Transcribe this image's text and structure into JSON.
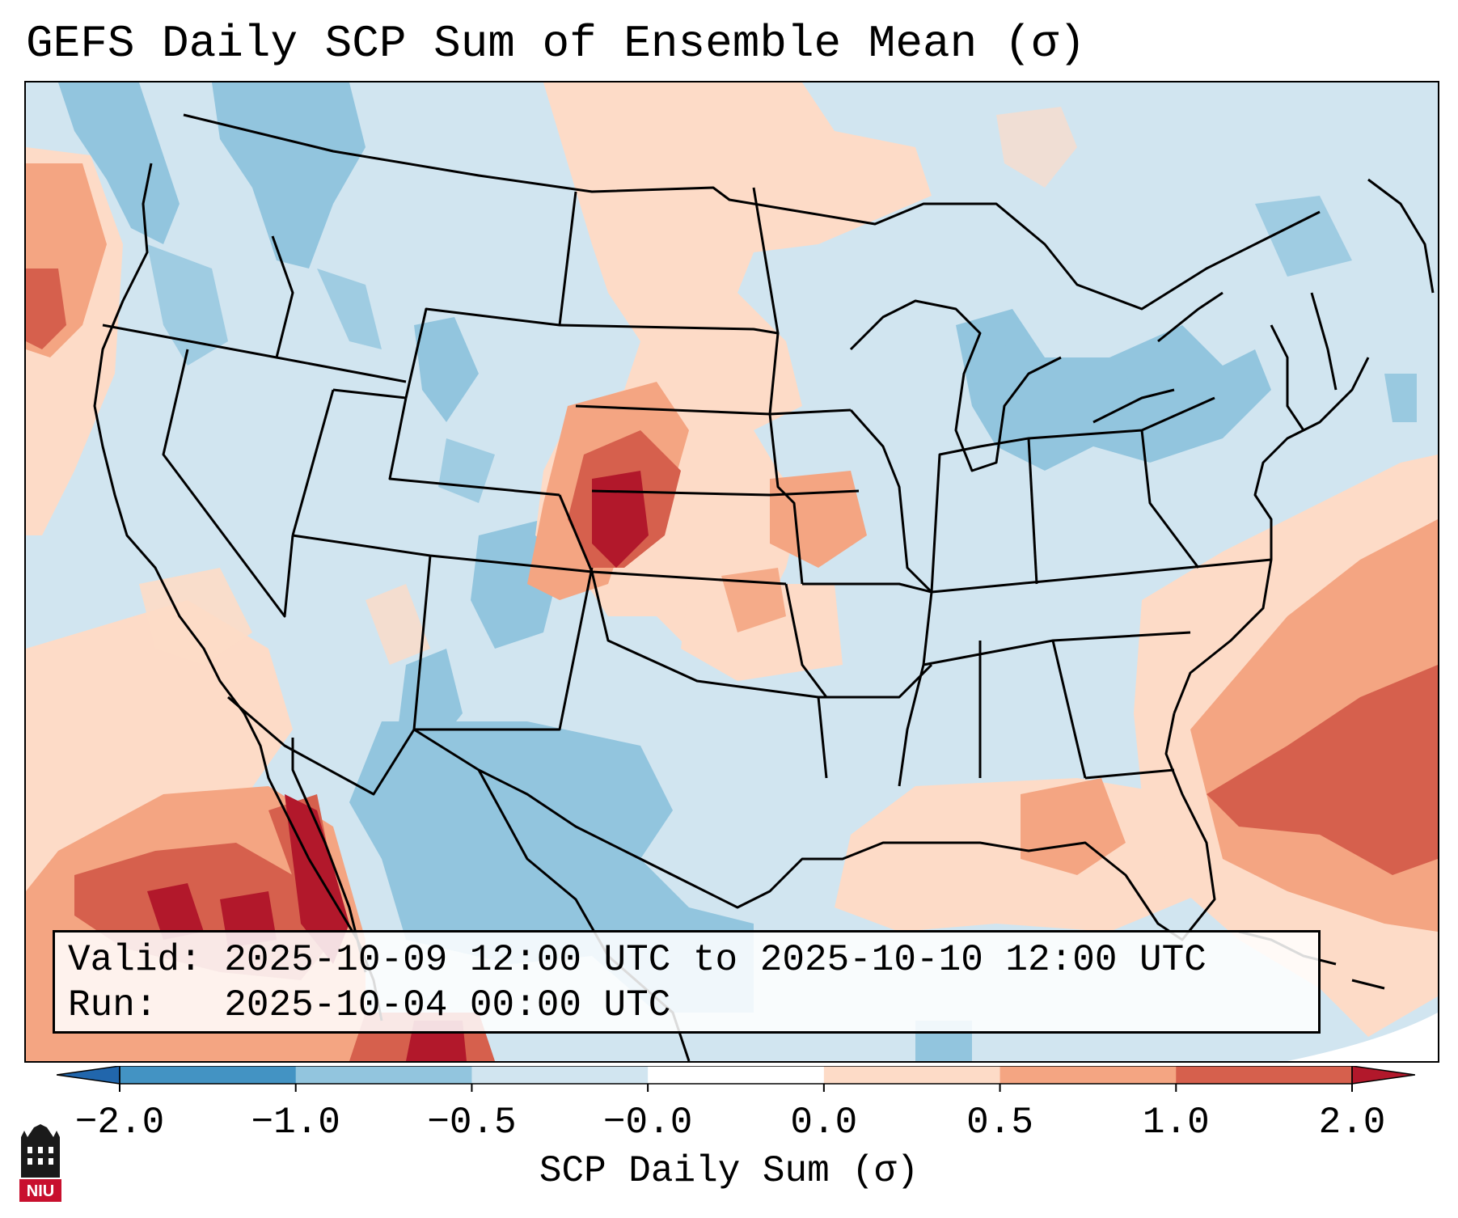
{
  "title": "GEFS Daily SCP Sum of Ensemble Mean (σ)",
  "info": {
    "valid_label": "Valid:",
    "valid_value": "2025-10-09 12:00 UTC to 2025-10-10 12:00 UTC",
    "run_label": "Run:",
    "run_value": "2025-10-04 00:00 UTC"
  },
  "colorbar": {
    "label": "SCP Daily Sum (σ)",
    "ticks": [
      "−2.0",
      "−1.0",
      "−0.5",
      "−0.0",
      "0.0",
      "0.5",
      "1.0",
      "2.0"
    ],
    "bin_colors": [
      "#4393c3",
      "#92c5de",
      "#d1e5f0",
      "#ffffff",
      "#fddbc7",
      "#f4a582",
      "#d6604d"
    ],
    "extend_low_color": "#2166ac",
    "extend_high_color": "#b2182b"
  },
  "logo": {
    "text": "NIU",
    "color": "#c8102e"
  },
  "colors": {
    "background": "#d1e5f0",
    "light_blue": "#92c5de",
    "light_red": "#fddbc7",
    "mid_red": "#f4a582",
    "red": "#d6604d",
    "dark_red": "#b2182b"
  }
}
